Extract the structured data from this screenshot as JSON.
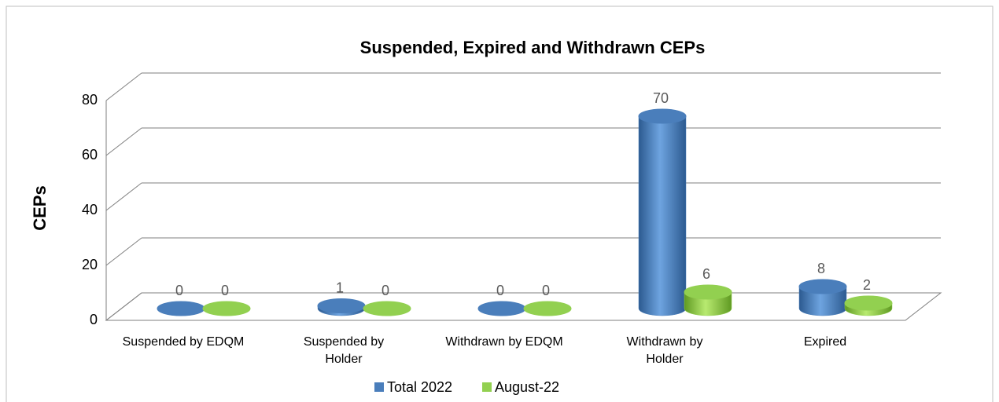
{
  "chart_data": {
    "type": "bar3d",
    "title": "Suspended, Expired and Withdrawn CEPs",
    "y_label": "CEPs",
    "categories": [
      "Suspended by EDQM",
      "Suspended by\nHolder",
      "Withdrawn by EDQM",
      "Withdrawn by\nHolder",
      "Expired"
    ],
    "series": [
      {
        "name": "Total 2022",
        "color": "#4a7ebb",
        "values": [
          0,
          1,
          0,
          70,
          8
        ]
      },
      {
        "name": "August-22",
        "color": "#92d050",
        "values": [
          0,
          0,
          0,
          6,
          2
        ]
      }
    ],
    "ylim": [
      0,
      80
    ],
    "yticks": [
      0,
      20,
      40,
      60,
      80
    ],
    "grid": true,
    "legend": "bottom"
  }
}
